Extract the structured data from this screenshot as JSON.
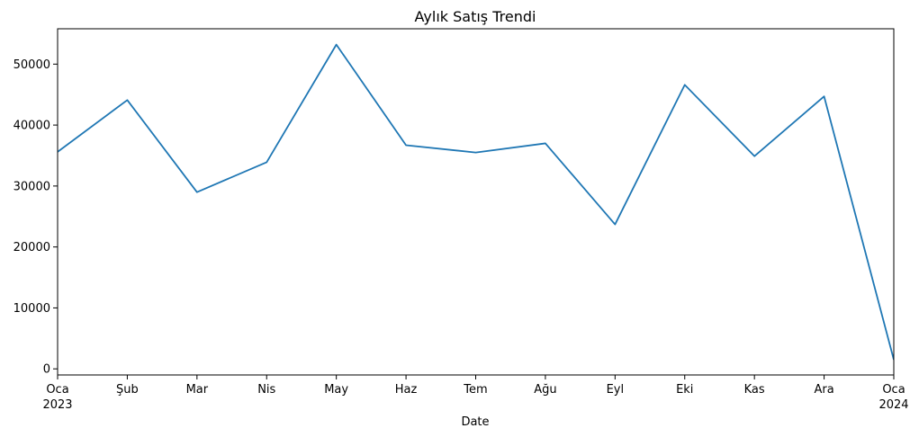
{
  "chart_data": {
    "type": "line",
    "title": "Aylık Satış Trendi",
    "xlabel": "Date",
    "ylabel": "",
    "x": [
      "2023-01",
      "2023-02",
      "2023-03",
      "2023-04",
      "2023-05",
      "2023-06",
      "2023-07",
      "2023-08",
      "2023-09",
      "2023-10",
      "2023-11",
      "2023-12",
      "2024-01"
    ],
    "x_tick_labels": [
      "Oca",
      "Şub",
      "Mar",
      "Nis",
      "May",
      "Haz",
      "Tem",
      "Ağu",
      "Eyl",
      "Eki",
      "Kas",
      "Ara",
      "Oca"
    ],
    "x_tick_year_labels": [
      "2023",
      "",
      "",
      "",
      "",
      "",
      "",
      "",
      "",
      "",
      "",
      "",
      "2024"
    ],
    "series": [
      {
        "values": [
          35600,
          44100,
          29000,
          33900,
          53200,
          36700,
          35500,
          37000,
          23700,
          46600,
          34900,
          44700,
          1500
        ],
        "color": "#1f77b4"
      }
    ],
    "y_ticks": [
      0,
      10000,
      20000,
      30000,
      40000,
      50000
    ],
    "y_tick_labels": [
      "0",
      "10000",
      "20000",
      "30000",
      "40000",
      "50000"
    ],
    "ylim": [
      -1000,
      55800
    ],
    "grid": false,
    "legend": "none"
  }
}
